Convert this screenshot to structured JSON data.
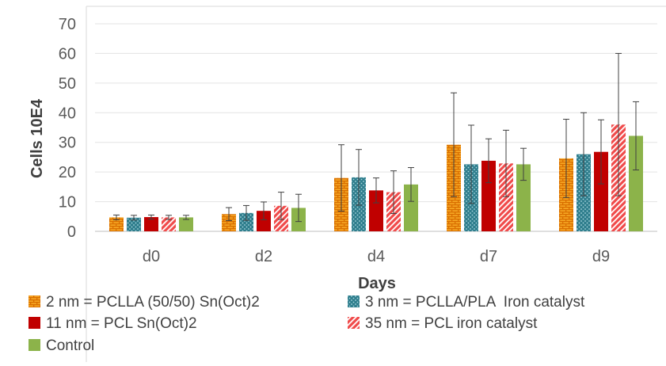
{
  "chart_data": {
    "type": "bar",
    "xlabel": "Days",
    "ylabel": "Cells 10E4",
    "ylim": [
      0,
      70
    ],
    "yticks": [
      0,
      10,
      20,
      30,
      40,
      50,
      60,
      70
    ],
    "grid": true,
    "legend_position": "bottom",
    "categories": [
      "d0",
      "d2",
      "d4",
      "d7",
      "d9"
    ],
    "series": [
      {
        "name": "2 nm = PCLLA (50/50) Sn(Oct)2",
        "color": "#f08a10",
        "pattern": "brick",
        "values": [
          4.7,
          5.8,
          18.0,
          29.2,
          24.6
        ],
        "errors": [
          0.8,
          2.2,
          11.2,
          17.5,
          13.2
        ]
      },
      {
        "name": "3 nm = PCLLA/PLA  Iron catalyst",
        "color": "#2e7d8c",
        "pattern": "dots",
        "values": [
          4.6,
          6.2,
          18.2,
          22.6,
          26.0
        ],
        "errors": [
          0.8,
          2.5,
          9.4,
          13.2,
          14.0
        ]
      },
      {
        "name": "11 nm = PCL Sn(Oct)2",
        "color": "#c00000",
        "pattern": "solid",
        "values": [
          4.8,
          6.9,
          13.8,
          23.8,
          26.8
        ],
        "errors": [
          0.7,
          3.0,
          4.2,
          7.4,
          10.8
        ]
      },
      {
        "name": "35 nm = PCL iron catalyst",
        "color": "#f04a4a",
        "pattern": "diagonal",
        "values": [
          4.7,
          8.6,
          13.2,
          22.9,
          36.0
        ],
        "errors": [
          0.7,
          4.6,
          7.2,
          11.2,
          24.0
        ]
      },
      {
        "name": "Control",
        "color": "#8cb34a",
        "pattern": "solid",
        "values": [
          4.7,
          7.9,
          15.8,
          22.6,
          32.2
        ],
        "errors": [
          0.7,
          4.6,
          5.7,
          5.4,
          11.5
        ]
      }
    ]
  }
}
